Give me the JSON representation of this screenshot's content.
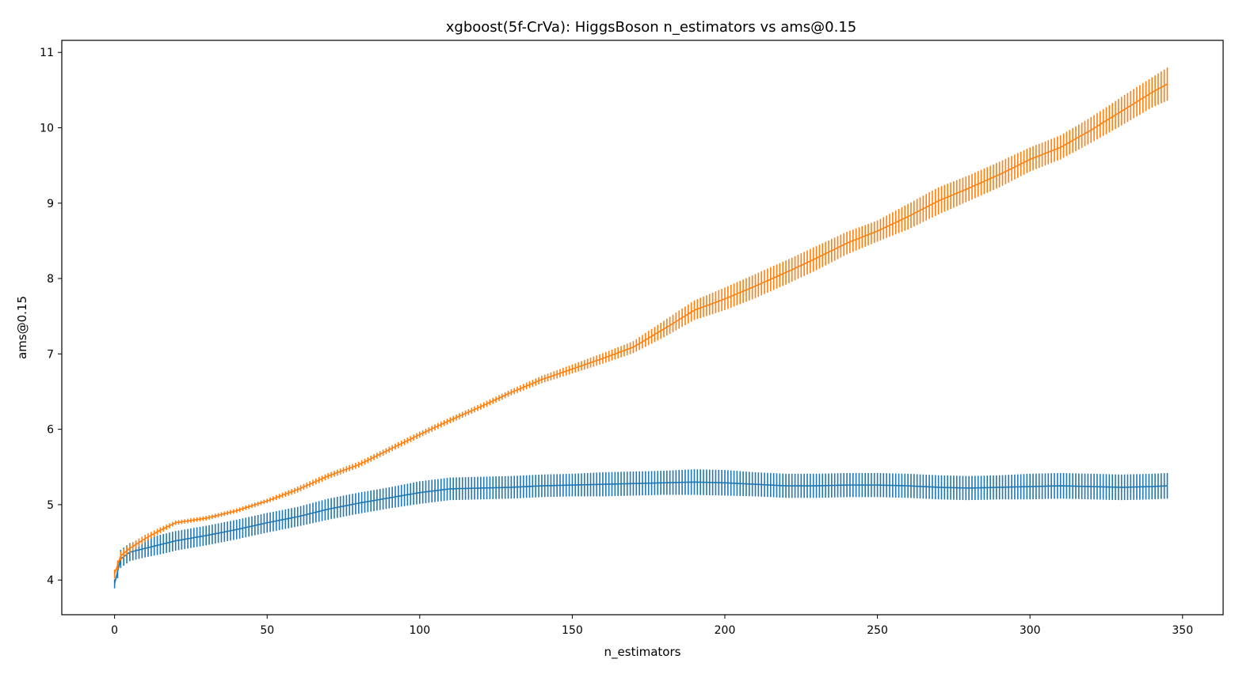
{
  "chart_data": {
    "type": "line",
    "title": "xgboost(5f-CrVa): HiggsBoson n_estimators vs ams@0.15",
    "xlabel": "n_estimators",
    "ylabel": "ams@0.15",
    "xlim": [
      -17.3,
      363.3
    ],
    "ylim": [
      3.54,
      11.16
    ],
    "xticks": [
      0,
      50,
      100,
      150,
      200,
      250,
      300,
      350
    ],
    "yticks": [
      4,
      5,
      6,
      7,
      8,
      9,
      10,
      11
    ],
    "grid": false,
    "legend": "none",
    "error_bars": true,
    "series": [
      {
        "color": "#1f77b4",
        "points": [
          [
            0,
            3.95,
            0.06
          ],
          [
            2,
            4.28,
            0.12
          ],
          [
            5,
            4.37,
            0.12
          ],
          [
            10,
            4.42,
            0.12
          ],
          [
            15,
            4.47,
            0.13
          ],
          [
            20,
            4.52,
            0.13
          ],
          [
            30,
            4.59,
            0.13
          ],
          [
            40,
            4.67,
            0.13
          ],
          [
            50,
            4.76,
            0.13
          ],
          [
            60,
            4.84,
            0.13
          ],
          [
            70,
            4.94,
            0.14
          ],
          [
            80,
            5.02,
            0.14
          ],
          [
            90,
            5.09,
            0.14
          ],
          [
            100,
            5.16,
            0.15
          ],
          [
            110,
            5.21,
            0.15
          ],
          [
            120,
            5.22,
            0.15
          ],
          [
            130,
            5.23,
            0.15
          ],
          [
            140,
            5.25,
            0.15
          ],
          [
            150,
            5.26,
            0.15
          ],
          [
            160,
            5.27,
            0.16
          ],
          [
            170,
            5.28,
            0.16
          ],
          [
            180,
            5.29,
            0.16
          ],
          [
            190,
            5.3,
            0.17
          ],
          [
            200,
            5.29,
            0.17
          ],
          [
            210,
            5.27,
            0.16
          ],
          [
            220,
            5.25,
            0.16
          ],
          [
            230,
            5.25,
            0.16
          ],
          [
            240,
            5.26,
            0.16
          ],
          [
            250,
            5.26,
            0.16
          ],
          [
            260,
            5.25,
            0.16
          ],
          [
            270,
            5.23,
            0.16
          ],
          [
            280,
            5.22,
            0.16
          ],
          [
            290,
            5.23,
            0.16
          ],
          [
            300,
            5.24,
            0.17
          ],
          [
            310,
            5.25,
            0.17
          ],
          [
            320,
            5.24,
            0.17
          ],
          [
            330,
            5.23,
            0.17
          ],
          [
            340,
            5.24,
            0.17
          ],
          [
            345,
            5.25,
            0.17
          ]
        ]
      },
      {
        "color": "#ff7f0e",
        "points": [
          [
            0,
            4.08,
            0.06
          ],
          [
            2,
            4.32,
            0.06
          ],
          [
            5,
            4.42,
            0.06
          ],
          [
            10,
            4.55,
            0.05
          ],
          [
            15,
            4.66,
            0.04
          ],
          [
            20,
            4.76,
            0.03
          ],
          [
            25,
            4.79,
            0.03
          ],
          [
            30,
            4.82,
            0.03
          ],
          [
            40,
            4.92,
            0.03
          ],
          [
            50,
            5.05,
            0.03
          ],
          [
            60,
            5.2,
            0.04
          ],
          [
            70,
            5.38,
            0.04
          ],
          [
            80,
            5.53,
            0.04
          ],
          [
            90,
            5.73,
            0.04
          ],
          [
            100,
            5.93,
            0.04
          ],
          [
            110,
            6.12,
            0.04
          ],
          [
            120,
            6.3,
            0.04
          ],
          [
            130,
            6.49,
            0.04
          ],
          [
            140,
            6.66,
            0.05
          ],
          [
            150,
            6.8,
            0.06
          ],
          [
            160,
            6.94,
            0.07
          ],
          [
            170,
            7.09,
            0.08
          ],
          [
            180,
            7.33,
            0.11
          ],
          [
            190,
            7.58,
            0.13
          ],
          [
            200,
            7.73,
            0.15
          ],
          [
            210,
            7.9,
            0.16
          ],
          [
            220,
            8.08,
            0.16
          ],
          [
            230,
            8.27,
            0.16
          ],
          [
            240,
            8.47,
            0.15
          ],
          [
            250,
            8.63,
            0.14
          ],
          [
            260,
            8.82,
            0.17
          ],
          [
            270,
            9.03,
            0.18
          ],
          [
            280,
            9.2,
            0.17
          ],
          [
            290,
            9.38,
            0.17
          ],
          [
            300,
            9.58,
            0.16
          ],
          [
            310,
            9.74,
            0.16
          ],
          [
            320,
            9.97,
            0.17
          ],
          [
            330,
            10.22,
            0.19
          ],
          [
            340,
            10.47,
            0.2
          ],
          [
            345,
            10.58,
            0.22
          ]
        ]
      }
    ]
  }
}
